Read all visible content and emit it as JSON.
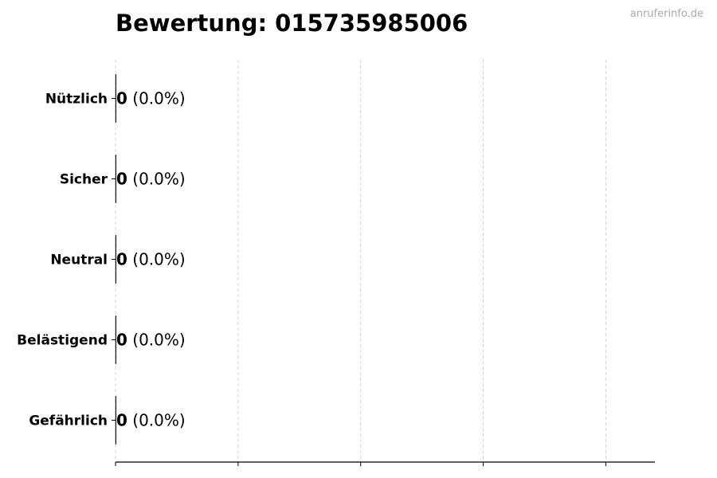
{
  "title": "Bewertung: 015735985006",
  "watermark": "anruferinfo.de",
  "chart_data": {
    "type": "bar",
    "orientation": "horizontal",
    "title": "Bewertung: 015735985006",
    "categories": [
      "Nützlich",
      "Sicher",
      "Neutral",
      "Belästigend",
      "Gefährlich"
    ],
    "values": [
      0,
      0,
      0,
      0,
      0
    ],
    "data_labels": [
      "0 (0.0%)",
      "0 (0.0%)",
      "0 (0.0%)",
      "0 (0.0%)",
      "0 (0.0%)"
    ],
    "percentages": [
      0.0,
      0.0,
      0.0,
      0.0,
      0.0
    ],
    "xlabel": "",
    "ylabel": "",
    "x_ticks": [
      0,
      1,
      2,
      3,
      4
    ],
    "x_tick_labels_shown": false,
    "xlim": [
      0,
      4.4
    ],
    "grid": "vertical dashed",
    "colors": {
      "bar_edge": "#000000",
      "grid": "#cccccc",
      "text": "#000000"
    }
  }
}
